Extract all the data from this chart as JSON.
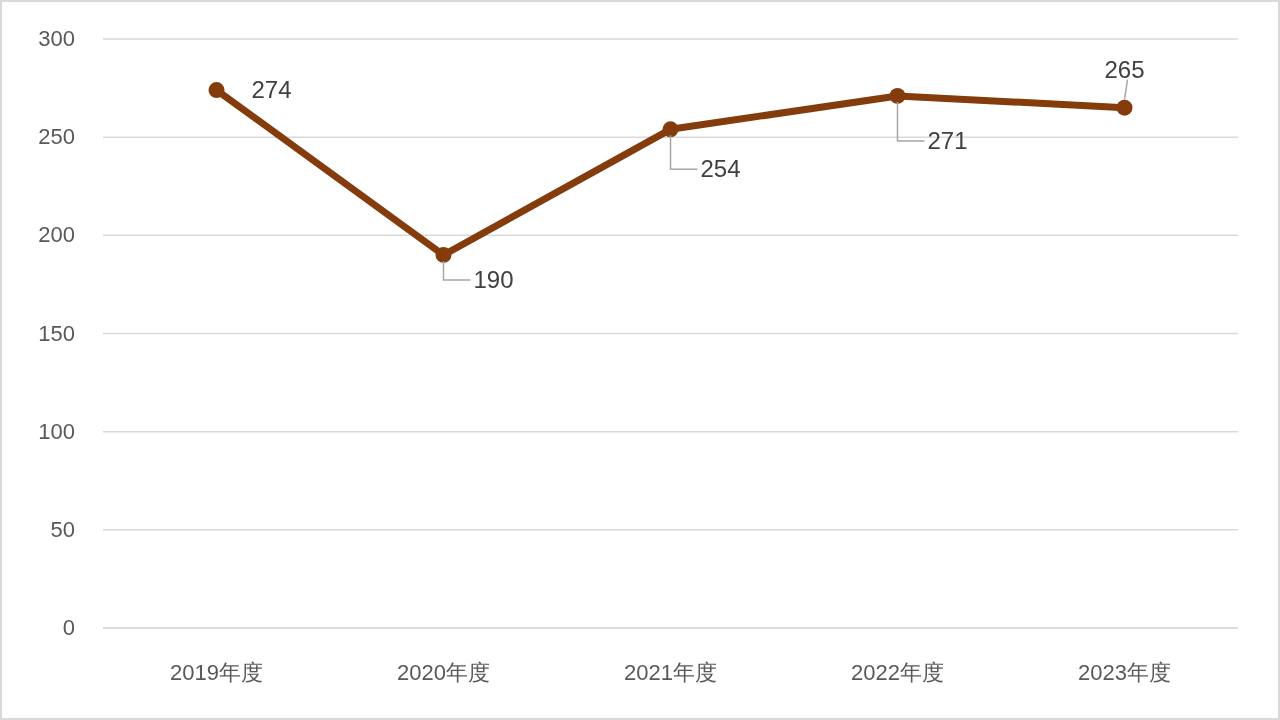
{
  "chart_data": {
    "type": "line",
    "categories": [
      "2019年度",
      "2020年度",
      "2021年度",
      "2022年度",
      "2023年度"
    ],
    "series": [
      {
        "color": "#843c0c",
        "values": [
          274,
          190,
          254,
          271,
          265
        ]
      }
    ],
    "ylim": [
      0,
      300
    ],
    "yticks": [
      0,
      50,
      100,
      150,
      200,
      250,
      300
    ],
    "grid": "y",
    "marker": "circle",
    "line_style": "solid",
    "data_labels": true
  }
}
